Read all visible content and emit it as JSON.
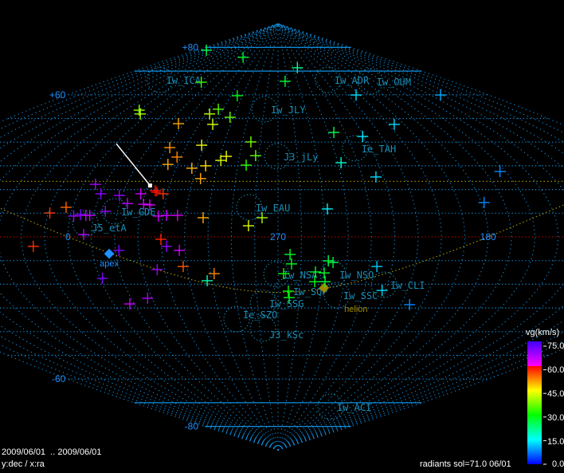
{
  "chart_data": {
    "type": "scatter",
    "projection": "sinusoidal",
    "center_ra": 270,
    "x_axis": "ra",
    "y_axis": "dec",
    "dec_range": [
      -90,
      90
    ],
    "grid": true,
    "grid_step_deg": 10,
    "tick_labels": {
      "dec": [
        {
          "value": 80,
          "text": "+80"
        },
        {
          "value": 60,
          "text": "+60"
        },
        {
          "value": -60,
          "text": "-60"
        },
        {
          "value": -80,
          "text": "-80"
        }
      ],
      "ra": [
        {
          "value": 0,
          "text": "0"
        },
        {
          "value": 270,
          "text": "270"
        },
        {
          "value": 180,
          "text": "180"
        }
      ]
    },
    "colors": {
      "grid": "#0f8fe0",
      "equator": "#c00000",
      "ecliptic": "#a09000",
      "shower": "#1a8cb4",
      "apex": "#1e90ff",
      "helion": "#a08a00",
      "arrow": "#ffffff"
    },
    "radiants": [
      {
        "ra": 68,
        "dec": 78.8,
        "vg": 25
      },
      {
        "ra": 331,
        "dec": 75.8,
        "vg": 28
      },
      {
        "ra": 244,
        "dec": 71.4,
        "vg": 22
      },
      {
        "ra": 262.6,
        "dec": 65.7,
        "vg": 27
      },
      {
        "ra": 348.7,
        "dec": 65.3,
        "vg": 33
      },
      {
        "ra": 304.5,
        "dec": 59.6,
        "vg": 30
      },
      {
        "ra": 10,
        "dec": 53.5,
        "vg": 38
      },
      {
        "ra": 5.6,
        "dec": 51.9,
        "vg": 40
      },
      {
        "ra": 313.4,
        "dec": 53.9,
        "vg": 35
      },
      {
        "ra": 317.5,
        "dec": 51.9,
        "vg": 41
      },
      {
        "ra": 302.3,
        "dec": 50.5,
        "vg": 36
      },
      {
        "ra": 333.5,
        "dec": 47.8,
        "vg": 50
      },
      {
        "ra": 311.4,
        "dec": 47.5,
        "vg": 43
      },
      {
        "ra": 285.2,
        "dec": 40.1,
        "vg": 37
      },
      {
        "ra": 328.6,
        "dec": 37.7,
        "vg": 51
      },
      {
        "ra": 322,
        "dec": 33.7,
        "vg": 52
      },
      {
        "ra": 324.8,
        "dec": 30.6,
        "vg": 50
      },
      {
        "ra": 312.2,
        "dec": 29,
        "vg": 49
      },
      {
        "ra": 311.9,
        "dec": 38.7,
        "vg": 44
      },
      {
        "ra": 305.8,
        "dec": 30,
        "vg": 47
      },
      {
        "ra": 306.5,
        "dec": 24.6,
        "vg": 50
      },
      {
        "ra": 299,
        "dec": 32.3,
        "vg": 43
      },
      {
        "ra": 296.7,
        "dec": 34,
        "vg": 44
      },
      {
        "ra": 281.6,
        "dec": 34.3,
        "vg": 36
      },
      {
        "ra": 285.8,
        "dec": 30.3,
        "vg": 33
      },
      {
        "ra": 354.5,
        "dec": 22.2,
        "vg": 67
      },
      {
        "ra": 349.9,
        "dec": 18.2,
        "vg": 69
      },
      {
        "ra": 341.3,
        "dec": 17.5,
        "vg": 68
      },
      {
        "ra": 336.5,
        "dec": 14.1,
        "vg": 65
      },
      {
        "ra": 331.9,
        "dec": 18.2,
        "vg": 64
      },
      {
        "ra": 325.8,
        "dec": 19.5,
        "vg": 59,
        "highlight": true
      },
      {
        "ra": 321.8,
        "dec": 18.2,
        "vg": 57
      },
      {
        "ra": 329.3,
        "dec": 13.8,
        "vg": 64
      },
      {
        "ra": 326.5,
        "dec": 13.5,
        "vg": 63
      },
      {
        "ra": 345.3,
        "dec": 10.8,
        "vg": 68
      },
      {
        "ra": 318.4,
        "dec": 9.1,
        "vg": 64
      },
      {
        "ra": 321.9,
        "dec": 8.8,
        "vg": 64
      },
      {
        "ra": 313.6,
        "dec": 9.1,
        "vg": 63
      },
      {
        "ra": 302.4,
        "dec": 8.1,
        "vg": 50
      },
      {
        "ra": 276.9,
        "dec": 8.1,
        "vg": 40
      },
      {
        "ra": 282.7,
        "dec": 4.7,
        "vg": 43
      },
      {
        "ra": 3,
        "dec": 12.5,
        "vg": 54
      },
      {
        "ra": 9.3,
        "dec": 10.1,
        "vg": 57
      },
      {
        "ra": 358.6,
        "dec": 8.8,
        "vg": 68
      },
      {
        "ra": 355.8,
        "dec": 9.4,
        "vg": 70
      },
      {
        "ra": 353.4,
        "dec": 9.1,
        "vg": 66
      },
      {
        "ra": 351.7,
        "dec": 9.1,
        "vg": 65
      },
      {
        "ra": 353.3,
        "dec": 1,
        "vg": 66
      },
      {
        "ra": 15.1,
        "dec": -4,
        "vg": 57
      },
      {
        "ra": 320.2,
        "dec": -1,
        "vg": 58
      },
      {
        "ra": 317.9,
        "dec": -4,
        "vg": 69
      },
      {
        "ra": 312.5,
        "dec": -5.7,
        "vg": 64
      },
      {
        "ra": 338.5,
        "dec": -5.7,
        "vg": 70
      },
      {
        "ra": 311.6,
        "dec": -12.5,
        "vg": 55
      },
      {
        "ra": 323.3,
        "dec": -13.8,
        "vg": 68
      },
      {
        "ra": 298.4,
        "dec": -15.5,
        "vg": 52
      },
      {
        "ra": 302,
        "dec": -18.5,
        "vg": 20
      },
      {
        "ra": 348.9,
        "dec": -17.5,
        "vg": 70
      },
      {
        "ra": 332.1,
        "dec": -25.9,
        "vg": 67
      },
      {
        "ra": 342.1,
        "dec": -28.3,
        "vg": 64
      },
      {
        "ra": 264.8,
        "dec": -7.4,
        "vg": 28
      },
      {
        "ra": 264.1,
        "dec": -11.4,
        "vg": 28
      },
      {
        "ra": 267.5,
        "dec": -15.5,
        "vg": 30
      },
      {
        "ra": 265.2,
        "dec": -22.9,
        "vg": 30
      },
      {
        "ra": 264.7,
        "dec": -25.6,
        "vg": 29
      },
      {
        "ra": 248.1,
        "dec": -10.1,
        "vg": 26
      },
      {
        "ra": 246,
        "dec": -10.8,
        "vg": 27
      },
      {
        "ra": 253.4,
        "dec": -14.8,
        "vg": 28
      },
      {
        "ra": 249.5,
        "dec": -15.2,
        "vg": 27
      },
      {
        "ra": 253.4,
        "dec": -18.9,
        "vg": 29
      },
      {
        "ra": 248.7,
        "dec": -18.9,
        "vg": 27
      },
      {
        "ra": 226.6,
        "dec": -12.5,
        "vg": 12
      },
      {
        "ra": 221.7,
        "dec": -22.6,
        "vg": 13
      },
      {
        "ra": 205.8,
        "dec": -28.6,
        "vg": 8
      },
      {
        "ra": 203.3,
        "dec": 59.9,
        "vg": 13
      },
      {
        "ra": 131.2,
        "dec": 59.9,
        "vg": 10
      },
      {
        "ra": 196.3,
        "dec": 47.5,
        "vg": 13
      },
      {
        "ra": 236.7,
        "dec": 44.1,
        "vg": 25
      },
      {
        "ra": 220.9,
        "dec": 42.4,
        "vg": 14
      },
      {
        "ra": 238.4,
        "dec": 31.3,
        "vg": 18
      },
      {
        "ra": 223.6,
        "dec": 25.3,
        "vg": 13
      },
      {
        "ra": 162.7,
        "dec": 27.6,
        "vg": 8
      },
      {
        "ra": 178.8,
        "dec": 14.5,
        "vg": 8
      },
      {
        "ra": 248.4,
        "dec": 11.8,
        "vg": 14
      }
    ],
    "showers": [
      {
        "name": "Iw_ICA",
        "ra": 36,
        "dec": 66.3
      },
      {
        "name": "Iw_ADR",
        "ra": 216.6,
        "dec": 66.3
      },
      {
        "name": "Iw_OUM",
        "ra": 174.1,
        "dec": 65.7
      },
      {
        "name": "Iw_JLY",
        "ra": 279.8,
        "dec": 53.9
      },
      {
        "name": "J3_jLy",
        "ra": 270.4,
        "dec": 34
      },
      {
        "name": "Ie_TAH",
        "ra": 228.4,
        "dec": 37.4
      },
      {
        "name": "Iw_EAU",
        "ra": 282.6,
        "dec": 12.5
      },
      {
        "name": "Iw_GDE",
        "ra": 341.2,
        "dec": 10.8
      },
      {
        "name": "J5_etA",
        "ra": 352.9,
        "dec": 5.7
      },
      {
        "name": "Iw_NSA",
        "ra": 270.7,
        "dec": -15.8
      },
      {
        "name": "Iw_NSO",
        "ra": 245.5,
        "dec": -15.8
      },
      {
        "name": "Iw_SSC",
        "ra": 242.2,
        "dec": -24.6
      },
      {
        "name": "Iw_SQP",
        "ra": 265.9,
        "dec": -22.9
      },
      {
        "name": "Iw_CLI",
        "ra": 221.6,
        "dec": -20.2
      },
      {
        "name": "Iw_SSG",
        "ra": 277.3,
        "dec": -27.9
      },
      {
        "name": "Ie_SZO",
        "ra": 291.6,
        "dec": -34.7
      },
      {
        "name": "J3_kSc",
        "ra": 278.3,
        "dec": -38.7
      },
      {
        "name": "Iw_ACI",
        "ra": 198.3,
        "dec": -71.7
      }
    ],
    "apex": {
      "label": "apex",
      "ra": 342.9,
      "dec": -7.1
    },
    "helion": {
      "label": "helion",
      "ra": 248.8,
      "dec": -21.5
    },
    "colorbar": {
      "title": "vg(km/s)",
      "range": [
        0,
        75
      ],
      "ticks": [
        "75.0",
        "60.0",
        "45.0",
        "30.0",
        "15.0",
        "0.0"
      ]
    }
  },
  "footer": {
    "date_range": "2009/06/01  .. 2009/06/01",
    "axes": "y:dec / x:ra",
    "status": "radiants sol=71.0 06/01"
  }
}
